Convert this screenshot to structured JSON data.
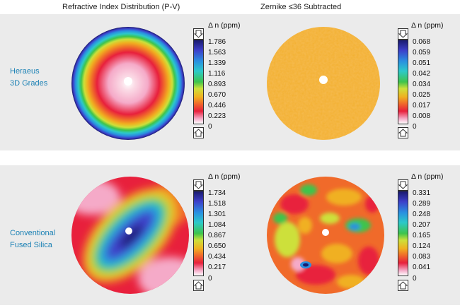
{
  "titles": {
    "left": "Refractive Index Distribution (P-V)",
    "right": "Zernike ≤36 Subtracted"
  },
  "rows": [
    {
      "label_line1": "Heraeus",
      "label_line2": "3D Grades",
      "left": {
        "unit": "Δ n (ppm)",
        "ticks": [
          "1.786",
          "1.563",
          "1.339",
          "1.116",
          "0.893",
          "0.670",
          "0.446",
          "0.223",
          "0"
        ]
      },
      "right": {
        "unit": "Δ n (ppm)",
        "ticks": [
          "0.068",
          "0.059",
          "0.051",
          "0.042",
          "0.034",
          "0.025",
          "0.017",
          "0.008",
          "0"
        ]
      }
    },
    {
      "label_line1": "Conventional",
      "label_line2": "Fused Silica",
      "left": {
        "unit": "Δ n (ppm)",
        "ticks": [
          "1.734",
          "1.518",
          "1.301",
          "1.084",
          "0.867",
          "0.650",
          "0.434",
          "0.217",
          "0"
        ]
      },
      "right": {
        "unit": "Δ n (ppm)",
        "ticks": [
          "0.331",
          "0.289",
          "0.248",
          "0.207",
          "0.165",
          "0.124",
          "0.083",
          "0.041",
          "0"
        ]
      }
    }
  ],
  "colors": {
    "colormap": [
      "#1a1a6e",
      "#3d3fc9",
      "#2a8fe0",
      "#2cc9c9",
      "#3ec44c",
      "#cde03a",
      "#f0b020",
      "#f06a2a",
      "#e8203c",
      "#f5aac8",
      "#ffffff"
    ],
    "row_label": "#1d82b5",
    "panel_background": "#ebebeb"
  }
}
